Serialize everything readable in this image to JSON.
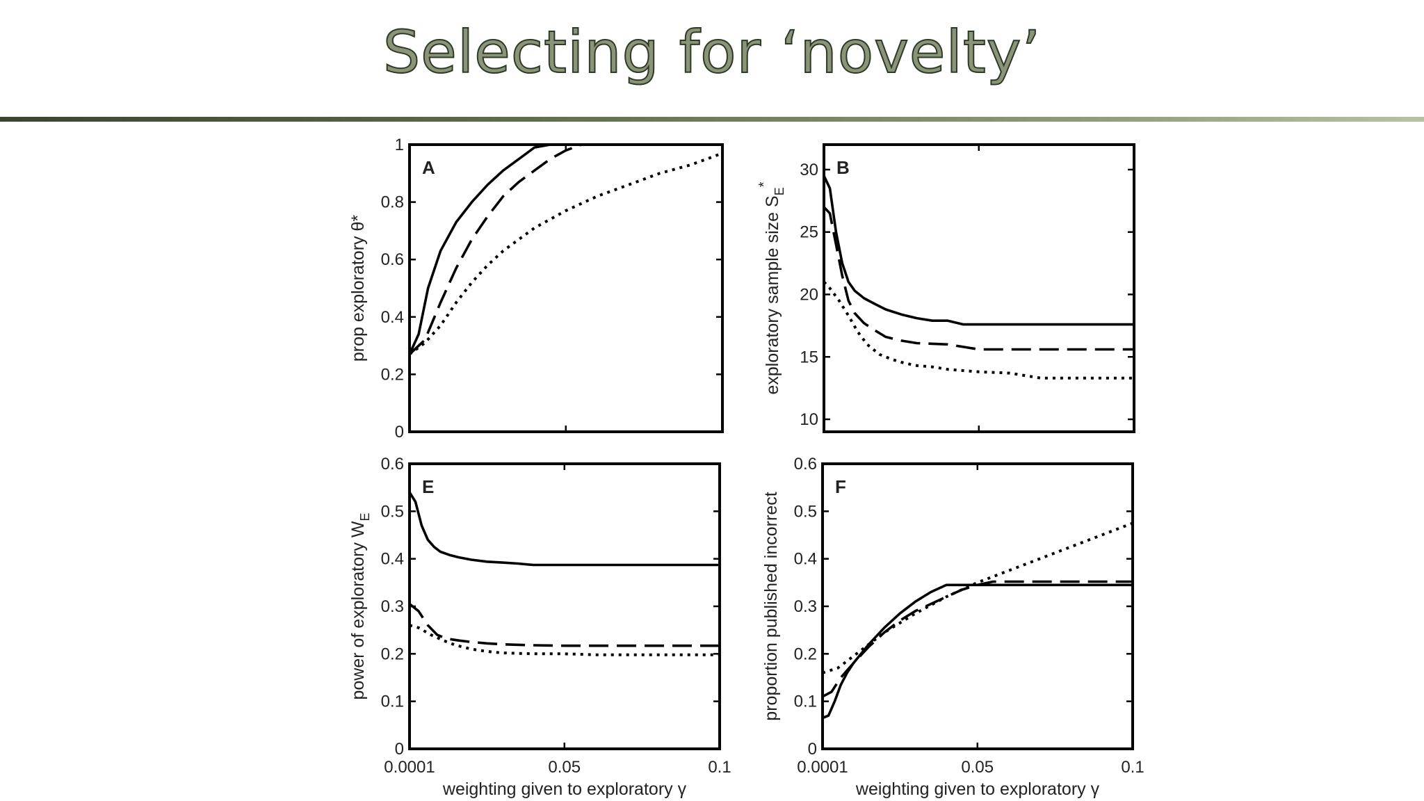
{
  "slide": {
    "title": "Selecting for ‘novelty’"
  },
  "chart_data": [
    {
      "id": "A",
      "type": "line",
      "panel_label": "A",
      "ylabel": "prop exploratory θ*",
      "xlabel": "",
      "xlim": [
        0.0001,
        0.1
      ],
      "ylim": [
        0,
        1
      ],
      "xticks": [
        0.0001,
        0.05,
        0.1
      ],
      "xtick_labels": [],
      "yticks": [
        0,
        0.2,
        0.4,
        0.6,
        0.8,
        1
      ],
      "ytick_labels": [
        "0",
        "0.2",
        "0.4",
        "0.6",
        "0.8",
        "1"
      ],
      "series": [
        {
          "style": "solid",
          "x": [
            0.0001,
            0.003,
            0.006,
            0.01,
            0.015,
            0.02,
            0.025,
            0.03,
            0.035,
            0.04,
            0.045,
            0.1
          ],
          "y": [
            0.27,
            0.34,
            0.5,
            0.63,
            0.73,
            0.8,
            0.86,
            0.91,
            0.95,
            0.99,
            1.0,
            1.0
          ]
        },
        {
          "style": "dashed",
          "x": [
            0.0001,
            0.005,
            0.01,
            0.015,
            0.02,
            0.025,
            0.03,
            0.035,
            0.04,
            0.045,
            0.05,
            0.055,
            0.06,
            0.1
          ],
          "y": [
            0.27,
            0.32,
            0.45,
            0.57,
            0.67,
            0.75,
            0.82,
            0.87,
            0.91,
            0.95,
            0.98,
            1.0,
            1.0,
            1.0
          ]
        },
        {
          "style": "dotted",
          "x": [
            0.0001,
            0.005,
            0.01,
            0.015,
            0.02,
            0.025,
            0.03,
            0.04,
            0.05,
            0.06,
            0.07,
            0.08,
            0.09,
            0.1
          ],
          "y": [
            0.27,
            0.31,
            0.37,
            0.45,
            0.52,
            0.58,
            0.63,
            0.71,
            0.77,
            0.82,
            0.86,
            0.9,
            0.93,
            0.97
          ]
        }
      ]
    },
    {
      "id": "B",
      "type": "line",
      "panel_label": "B",
      "ylabel": "exploratory sample size S",
      "ylabel_sub": "E",
      "ylabel_sup": "*",
      "xlabel": "",
      "xlim": [
        0.0001,
        0.1
      ],
      "ylim": [
        9,
        32
      ],
      "xticks": [
        0.0001,
        0.05,
        0.1
      ],
      "xtick_labels": [],
      "yticks": [
        10,
        15,
        20,
        25,
        30
      ],
      "ytick_labels": [
        "10",
        "15",
        "20",
        "25",
        "30"
      ],
      "series": [
        {
          "style": "solid",
          "x": [
            0.0001,
            0.002,
            0.004,
            0.006,
            0.008,
            0.01,
            0.013,
            0.016,
            0.02,
            0.025,
            0.03,
            0.035,
            0.04,
            0.045,
            0.1
          ],
          "y": [
            29.5,
            28.5,
            25.0,
            22.5,
            21.0,
            20.3,
            19.7,
            19.3,
            18.8,
            18.4,
            18.1,
            17.9,
            17.9,
            17.6,
            17.6
          ]
        },
        {
          "style": "dashed",
          "x": [
            0.0001,
            0.002,
            0.004,
            0.006,
            0.008,
            0.01,
            0.013,
            0.016,
            0.02,
            0.025,
            0.03,
            0.04,
            0.045,
            0.05,
            0.1
          ],
          "y": [
            27.0,
            26.5,
            24.0,
            21.5,
            19.5,
            18.5,
            17.7,
            17.2,
            16.6,
            16.3,
            16.1,
            16.0,
            15.8,
            15.6,
            15.6
          ]
        },
        {
          "style": "dotted",
          "x": [
            0.0001,
            0.002,
            0.005,
            0.008,
            0.011,
            0.014,
            0.018,
            0.022,
            0.026,
            0.03,
            0.035,
            0.04,
            0.05,
            0.06,
            0.07,
            0.1
          ],
          "y": [
            21.0,
            20.5,
            19.5,
            18.3,
            17.0,
            16.0,
            15.2,
            14.8,
            14.5,
            14.3,
            14.2,
            14.0,
            13.8,
            13.7,
            13.3,
            13.3
          ]
        }
      ]
    },
    {
      "id": "E",
      "type": "line",
      "panel_label": "E",
      "ylabel": "power of exploratory W",
      "ylabel_sub": "E",
      "xlabel": "weighting given to exploratory γ",
      "xlim": [
        0.0001,
        0.1
      ],
      "ylim": [
        0,
        0.6
      ],
      "xticks": [
        0.0001,
        0.05,
        0.1
      ],
      "xtick_labels": [
        "0.0001",
        "0.05",
        "0.1"
      ],
      "yticks": [
        0,
        0.1,
        0.2,
        0.3,
        0.4,
        0.5,
        0.6
      ],
      "ytick_labels": [
        "0",
        "0.1",
        "0.2",
        "0.3",
        "0.4",
        "0.5",
        "0.6"
      ],
      "series": [
        {
          "style": "solid",
          "x": [
            0.0001,
            0.002,
            0.004,
            0.006,
            0.008,
            0.01,
            0.013,
            0.016,
            0.02,
            0.025,
            0.03,
            0.035,
            0.04,
            0.1
          ],
          "y": [
            0.54,
            0.52,
            0.47,
            0.44,
            0.425,
            0.415,
            0.408,
            0.403,
            0.398,
            0.394,
            0.392,
            0.39,
            0.387,
            0.387
          ]
        },
        {
          "style": "dashed",
          "x": [
            0.0001,
            0.003,
            0.006,
            0.009,
            0.012,
            0.016,
            0.02,
            0.025,
            0.03,
            0.04,
            0.05,
            0.1
          ],
          "y": [
            0.305,
            0.29,
            0.26,
            0.24,
            0.232,
            0.228,
            0.225,
            0.222,
            0.22,
            0.218,
            0.217,
            0.217
          ]
        },
        {
          "style": "dotted",
          "x": [
            0.0001,
            0.003,
            0.007,
            0.011,
            0.015,
            0.02,
            0.025,
            0.03,
            0.04,
            0.05,
            0.06,
            0.1
          ],
          "y": [
            0.26,
            0.255,
            0.24,
            0.228,
            0.218,
            0.21,
            0.205,
            0.202,
            0.2,
            0.2,
            0.198,
            0.198
          ]
        }
      ]
    },
    {
      "id": "F",
      "type": "line",
      "panel_label": "F",
      "ylabel": "proportion published incorrect",
      "xlabel": "weighting given to exploratory γ",
      "xlim": [
        0.0001,
        0.1
      ],
      "ylim": [
        0,
        0.6
      ],
      "xticks": [
        0.0001,
        0.05,
        0.1
      ],
      "xtick_labels": [
        "0.0001",
        "0.05",
        "0.1"
      ],
      "yticks": [
        0,
        0.1,
        0.2,
        0.3,
        0.4,
        0.5,
        0.6
      ],
      "ytick_labels": [
        "0",
        "0.1",
        "0.2",
        "0.3",
        "0.4",
        "0.5",
        "0.6"
      ],
      "series": [
        {
          "style": "solid",
          "x": [
            0.0001,
            0.002,
            0.004,
            0.006,
            0.008,
            0.01,
            0.015,
            0.02,
            0.025,
            0.03,
            0.035,
            0.04,
            0.042,
            0.1
          ],
          "y": [
            0.065,
            0.07,
            0.1,
            0.135,
            0.16,
            0.18,
            0.22,
            0.255,
            0.285,
            0.31,
            0.33,
            0.345,
            0.345,
            0.345
          ]
        },
        {
          "style": "dashed",
          "x": [
            0.0001,
            0.003,
            0.006,
            0.01,
            0.015,
            0.02,
            0.025,
            0.03,
            0.035,
            0.04,
            0.045,
            0.05,
            0.055,
            0.1
          ],
          "y": [
            0.11,
            0.12,
            0.15,
            0.18,
            0.215,
            0.245,
            0.27,
            0.29,
            0.305,
            0.32,
            0.335,
            0.345,
            0.352,
            0.352
          ]
        },
        {
          "style": "dotted",
          "x": [
            0.0001,
            0.005,
            0.01,
            0.02,
            0.03,
            0.04,
            0.05,
            0.06,
            0.07,
            0.08,
            0.09,
            0.1
          ],
          "y": [
            0.16,
            0.17,
            0.195,
            0.245,
            0.285,
            0.32,
            0.35,
            0.375,
            0.4,
            0.425,
            0.45,
            0.475
          ]
        }
      ]
    }
  ]
}
